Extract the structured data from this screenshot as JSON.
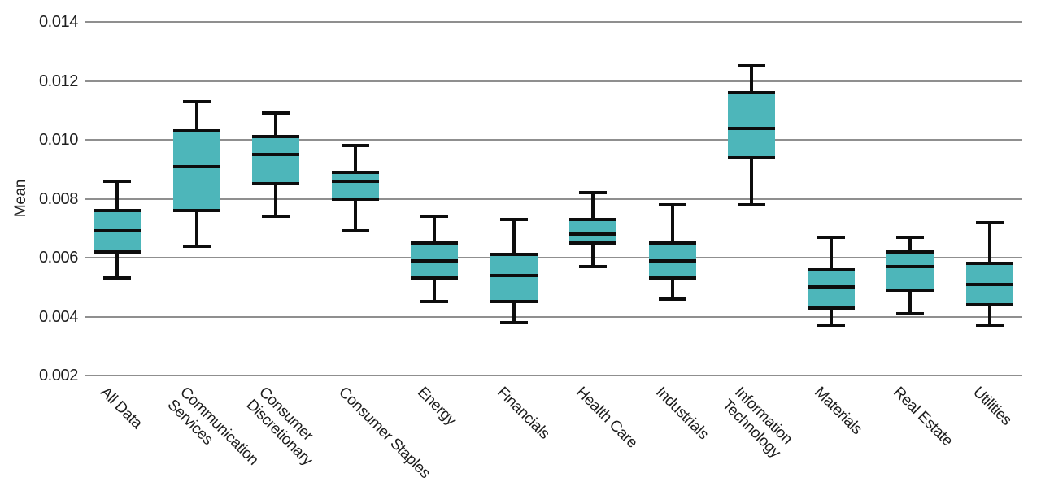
{
  "chart_data": {
    "type": "boxplot",
    "title": "",
    "xlabel": "",
    "ylabel": "Mean",
    "ylim": [
      0.002,
      0.014
    ],
    "yticks": [
      0.014,
      0.012,
      0.01,
      0.008,
      0.006,
      0.004,
      0.002
    ],
    "ytick_labels": [
      "0.014",
      "0.012",
      "0.010",
      "0.008",
      "0.006",
      "0.004",
      "0.002"
    ],
    "grid": true,
    "legend": false,
    "box_fill_color": "#4db6ba",
    "line_color": "#0d0d0d",
    "gridline_color": "#8f8f8f",
    "categories": [
      "All Data",
      "Communication\nServices",
      "Consumer\nDiscretionary",
      "Consumer Staples",
      "Energy",
      "Financials",
      "Health Care",
      "Industrials",
      "Information\nTechnology",
      "Materials",
      "Real Estate",
      "Utilities"
    ],
    "series": [
      {
        "name": "All Data",
        "whisker_low": 0.0053,
        "q1": 0.0062,
        "median": 0.0069,
        "q3": 0.0076,
        "whisker_high": 0.0086
      },
      {
        "name": "Communication Services",
        "whisker_low": 0.0064,
        "q1": 0.0076,
        "median": 0.0091,
        "q3": 0.0103,
        "whisker_high": 0.0113
      },
      {
        "name": "Consumer Discretionary",
        "whisker_low": 0.0074,
        "q1": 0.0085,
        "median": 0.0095,
        "q3": 0.0101,
        "whisker_high": 0.0109
      },
      {
        "name": "Consumer Staples",
        "whisker_low": 0.0069,
        "q1": 0.008,
        "median": 0.0086,
        "q3": 0.0089,
        "whisker_high": 0.0098
      },
      {
        "name": "Energy",
        "whisker_low": 0.0045,
        "q1": 0.0053,
        "median": 0.0059,
        "q3": 0.0065,
        "whisker_high": 0.0074
      },
      {
        "name": "Financials",
        "whisker_low": 0.0038,
        "q1": 0.0045,
        "median": 0.0054,
        "q3": 0.0061,
        "whisker_high": 0.0073
      },
      {
        "name": "Health Care",
        "whisker_low": 0.0057,
        "q1": 0.0065,
        "median": 0.0068,
        "q3": 0.0073,
        "whisker_high": 0.0082
      },
      {
        "name": "Industrials",
        "whisker_low": 0.0046,
        "q1": 0.0053,
        "median": 0.0059,
        "q3": 0.0065,
        "whisker_high": 0.0078
      },
      {
        "name": "Information Technology",
        "whisker_low": 0.0078,
        "q1": 0.0094,
        "median": 0.0104,
        "q3": 0.0116,
        "whisker_high": 0.0125
      },
      {
        "name": "Materials",
        "whisker_low": 0.0037,
        "q1": 0.0043,
        "median": 0.005,
        "q3": 0.0056,
        "whisker_high": 0.0067
      },
      {
        "name": "Real Estate",
        "whisker_low": 0.0041,
        "q1": 0.0049,
        "median": 0.0057,
        "q3": 0.0062,
        "whisker_high": 0.0067
      },
      {
        "name": "Utilities",
        "whisker_low": 0.0037,
        "q1": 0.0044,
        "median": 0.0051,
        "q3": 0.0058,
        "whisker_high": 0.0072
      }
    ]
  }
}
